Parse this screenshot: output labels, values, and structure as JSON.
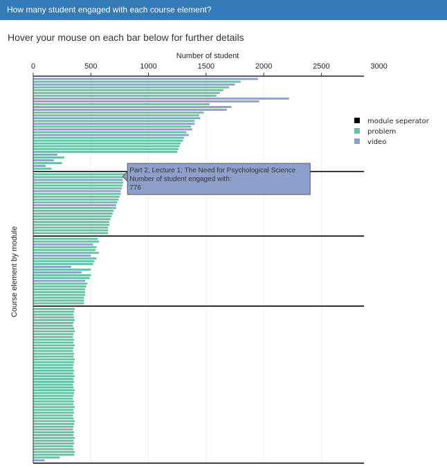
{
  "panel": {
    "title": "How many student engaged with each course element?",
    "instruction": "Hover your mouse on each bar below for further details"
  },
  "chart_data": {
    "type": "bar",
    "orientation": "horizontal",
    "title": "",
    "xlabel": "Number of student",
    "ylabel": "Course element by module",
    "xlim": [
      0,
      2870
    ],
    "x_ticks": [
      0,
      500,
      1000,
      1500,
      2000,
      2500,
      3000
    ],
    "x_axis_position": "top",
    "grid": true,
    "legend_position": "right",
    "colors": {
      "module seperator": "#000000",
      "problem": "#66c2a5",
      "video": "#8da0cb"
    },
    "legend": [
      "module seperator",
      "problem",
      "video"
    ],
    "series": [
      {
        "name": "module seperator",
        "values": [
          2870
        ]
      },
      {
        "name": "problem",
        "values": [
          1800,
          1700,
          1650,
          1620,
          1590,
          1530,
          1480,
          1440,
          1400,
          1370,
          1330,
          1310,
          1300,
          1280,
          1270,
          1260,
          1250,
          270,
          250,
          160
        ]
      },
      {
        "name": "video",
        "values": [
          1950,
          1750,
          2220,
          1960,
          1720,
          1680,
          1450,
          1400,
          1380,
          1350,
          210,
          180,
          110
        ]
      }
    ],
    "modules": [
      {
        "module": 1,
        "elements": [
          [
            "video",
            1950
          ],
          [
            "problem",
            1800
          ],
          [
            "video",
            1750
          ],
          [
            "problem",
            1700
          ],
          [
            "problem",
            1650
          ],
          [
            "problem",
            1620
          ],
          [
            "problem",
            1590
          ],
          [
            "video",
            2220
          ],
          [
            "video",
            1960
          ],
          [
            "problem",
            1530
          ],
          [
            "video",
            1720
          ],
          [
            "video",
            1680
          ],
          [
            "problem",
            1480
          ],
          [
            "problem",
            1440
          ],
          [
            "video",
            1450
          ],
          [
            "problem",
            1400
          ],
          [
            "video",
            1400
          ],
          [
            "problem",
            1370
          ],
          [
            "video",
            1380
          ],
          [
            "problem",
            1330
          ],
          [
            "video",
            1350
          ],
          [
            "problem",
            1310
          ],
          [
            "problem",
            1300
          ],
          [
            "problem",
            1280
          ],
          [
            "problem",
            1270
          ],
          [
            "problem",
            1260
          ],
          [
            "problem",
            1250
          ],
          [
            "video",
            210
          ],
          [
            "problem",
            270
          ],
          [
            "video",
            180
          ],
          [
            "problem",
            250
          ],
          [
            "video",
            110
          ],
          [
            "problem",
            160
          ]
        ]
      },
      {
        "module": 2,
        "elements": [
          [
            "problem",
            800
          ],
          [
            "problem",
            790
          ],
          [
            "video",
            776
          ],
          [
            "problem",
            780
          ],
          [
            "problem",
            775
          ],
          [
            "problem",
            770
          ],
          [
            "video",
            760
          ],
          [
            "problem",
            760
          ],
          [
            "problem",
            750
          ],
          [
            "problem",
            740
          ],
          [
            "problem",
            730
          ],
          [
            "video",
            720
          ],
          [
            "problem",
            720
          ],
          [
            "problem",
            700
          ],
          [
            "problem",
            690
          ],
          [
            "problem",
            680
          ],
          [
            "problem",
            670
          ],
          [
            "problem",
            660
          ],
          [
            "problem",
            660
          ],
          [
            "problem",
            650
          ],
          [
            "problem",
            650
          ],
          [
            "problem",
            650
          ]
        ]
      },
      {
        "module": 3,
        "elements": [
          [
            "problem",
            560
          ],
          [
            "problem",
            570
          ],
          [
            "video",
            520
          ],
          [
            "problem",
            550
          ],
          [
            "problem",
            540
          ],
          [
            "problem",
            570
          ],
          [
            "video",
            500
          ],
          [
            "problem",
            550
          ],
          [
            "problem",
            530
          ],
          [
            "problem",
            520
          ],
          [
            "video",
            330
          ],
          [
            "problem",
            500
          ],
          [
            "video",
            420
          ],
          [
            "problem",
            500
          ],
          [
            "problem",
            490
          ],
          [
            "video",
            450
          ],
          [
            "problem",
            470
          ],
          [
            "problem",
            460
          ],
          [
            "problem",
            450
          ],
          [
            "problem",
            450
          ],
          [
            "problem",
            450
          ],
          [
            "problem",
            440
          ],
          [
            "problem",
            440
          ],
          [
            "problem",
            440
          ]
        ]
      },
      {
        "module": 4,
        "elements": [
          [
            "problem",
            360
          ],
          [
            "problem",
            355
          ],
          [
            "problem",
            350
          ],
          [
            "problem",
            355
          ],
          [
            "problem",
            360
          ],
          [
            "problem",
            350
          ],
          [
            "problem",
            345
          ],
          [
            "problem",
            355
          ],
          [
            "problem",
            360
          ],
          [
            "problem",
            350
          ],
          [
            "problem",
            345
          ],
          [
            "problem",
            355
          ],
          [
            "problem",
            350
          ],
          [
            "problem",
            360
          ],
          [
            "problem",
            350
          ],
          [
            "problem",
            345
          ],
          [
            "problem",
            355
          ],
          [
            "problem",
            350
          ],
          [
            "problem",
            360
          ],
          [
            "problem",
            355
          ],
          [
            "problem",
            350
          ],
          [
            "problem",
            345
          ],
          [
            "problem",
            355
          ],
          [
            "problem",
            350
          ],
          [
            "problem",
            360
          ],
          [
            "problem",
            350
          ],
          [
            "problem",
            355
          ],
          [
            "problem",
            345
          ],
          [
            "problem",
            350
          ],
          [
            "problem",
            360
          ],
          [
            "problem",
            355
          ],
          [
            "problem",
            350
          ],
          [
            "problem",
            345
          ],
          [
            "problem",
            355
          ],
          [
            "problem",
            350
          ],
          [
            "problem",
            360
          ],
          [
            "problem",
            350
          ],
          [
            "problem",
            355
          ],
          [
            "problem",
            345
          ],
          [
            "problem",
            350
          ],
          [
            "problem",
            360
          ],
          [
            "problem",
            355
          ],
          [
            "problem",
            350
          ],
          [
            "problem",
            345
          ],
          [
            "problem",
            355
          ],
          [
            "problem",
            350
          ],
          [
            "problem",
            360
          ],
          [
            "problem",
            350
          ],
          [
            "problem",
            355
          ],
          [
            "problem",
            345
          ],
          [
            "problem",
            350
          ],
          [
            "problem",
            360
          ],
          [
            "problem",
            355
          ],
          [
            "problem",
            230
          ],
          [
            "video",
            100
          ]
        ]
      }
    ],
    "tooltip": {
      "element": "Part 2, Lecture 1: The Need for Psychological Science",
      "label": "Number of student engaged with:",
      "value": "776"
    }
  }
}
